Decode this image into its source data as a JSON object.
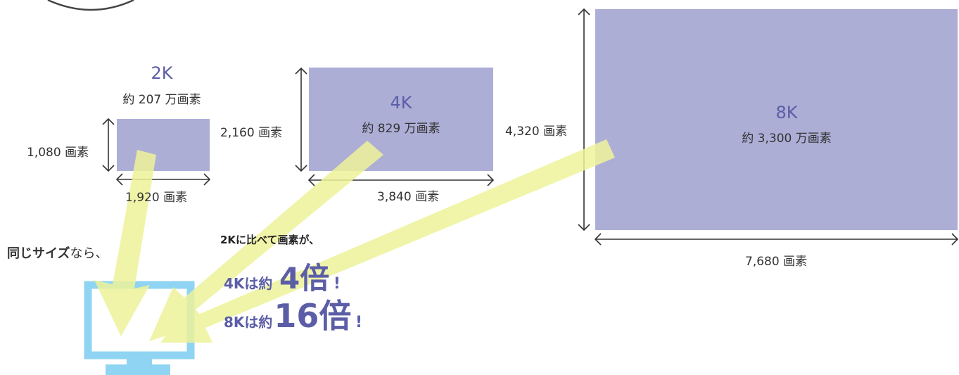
{
  "colors": {
    "rect_fill": "#adaed6",
    "accent_text": "#5b5ea6",
    "arrow_yellow": "#eef39a",
    "monitor_blue": "#8fd4f2"
  },
  "k2": {
    "label": "2K",
    "pixels": "約 207 万画素",
    "height_label": "1,080 画素",
    "width_label": "1,920 画素"
  },
  "k4": {
    "label": "4K",
    "pixels": "約 829 万画素",
    "height_label": "2,160 画素",
    "width_label": "3,840 画素"
  },
  "k8": {
    "label": "8K",
    "pixels": "約 3,300 万画素",
    "height_label": "4,320 画素",
    "width_label": "7,680 画素"
  },
  "caption": {
    "same_size_bold": "同じサイズ",
    "same_size_rest": "なら、",
    "compare": "2Kに比べて画素が、",
    "line1_prefix": "4Kは約",
    "line1_number": "4倍",
    "line1_suffix": "!",
    "line2_prefix": "8Kは約",
    "line2_number": "16倍",
    "line2_suffix": "!"
  },
  "icons": {
    "monitor": "monitor-icon",
    "arrows": "yellow-arrow-icon"
  }
}
